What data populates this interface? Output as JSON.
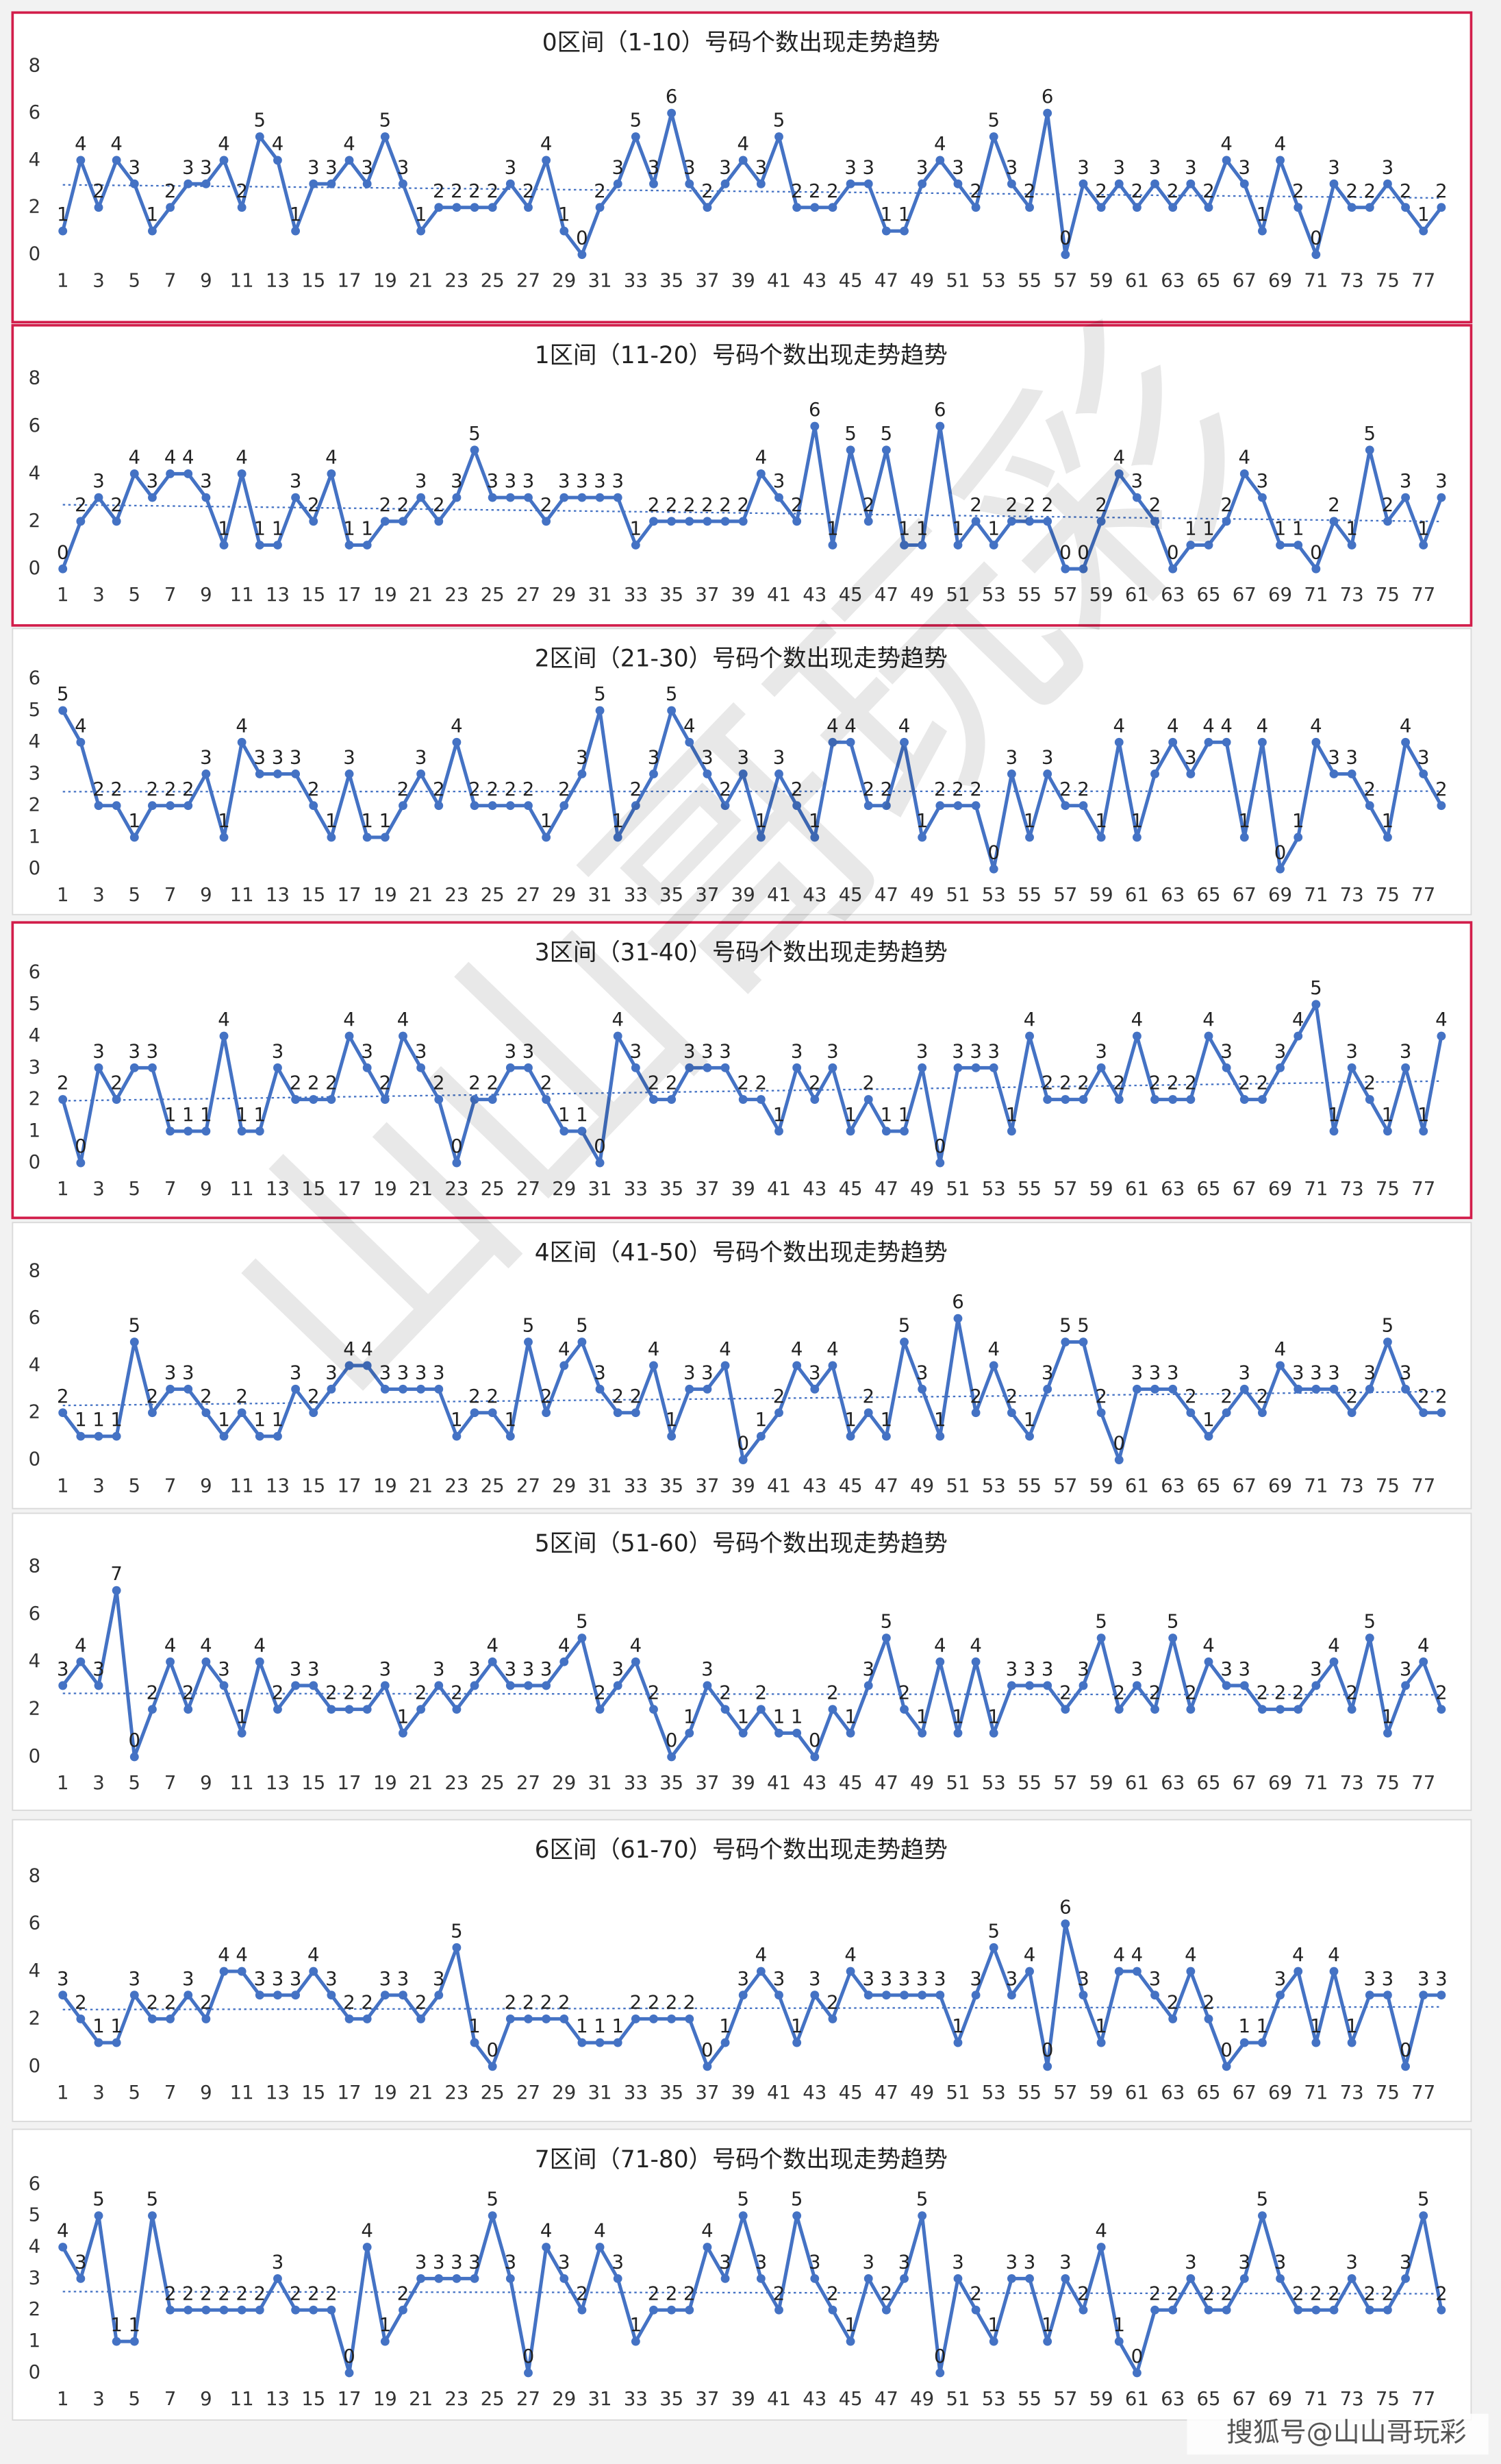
{
  "chart_data": [
    {
      "type": "line",
      "title": "0区间（1-10）号码个数出现走势趋势",
      "color": "#4472c4",
      "highlighted": true,
      "ylim": [
        0,
        8
      ],
      "yticks": [
        0,
        2,
        4,
        6,
        8
      ],
      "categories": [
        1,
        null,
        3,
        null,
        5,
        null,
        7,
        null,
        9,
        null,
        11,
        null,
        13,
        null,
        15,
        null,
        17,
        null,
        19,
        null,
        21,
        null,
        23,
        null,
        25,
        null,
        27,
        null,
        29,
        null,
        31,
        null,
        33,
        null,
        35,
        null,
        37,
        null,
        39,
        null,
        41,
        null,
        43,
        null,
        45,
        null,
        47,
        null,
        49,
        null,
        51,
        null,
        53,
        null,
        55,
        null,
        57,
        null,
        59,
        null,
        61,
        null,
        63,
        null,
        65,
        null,
        67,
        null,
        69,
        null,
        71,
        null,
        73,
        null,
        75,
        null,
        77,
        null
      ],
      "values": [
        1,
        4,
        2,
        4,
        3,
        1,
        2,
        3,
        3,
        4,
        2,
        5,
        4,
        1,
        3,
        3,
        4,
        3,
        5,
        3,
        1,
        2,
        2,
        2,
        2,
        3,
        2,
        4,
        1,
        0,
        2,
        3,
        5,
        3,
        6,
        3,
        2,
        3,
        4,
        3,
        5,
        2,
        2,
        2,
        3,
        3,
        1,
        1,
        3,
        4,
        3,
        2,
        5,
        3,
        2,
        6,
        0,
        3,
        2,
        3,
        2,
        3,
        2,
        3,
        2,
        4,
        3,
        1,
        4,
        2,
        0,
        3,
        2,
        2,
        3,
        2,
        1,
        2
      ]
    },
    {
      "type": "line",
      "title": "1区间（11-20）号码个数出现走势趋势",
      "color": "#4472c4",
      "highlighted": true,
      "ylim": [
        0,
        8
      ],
      "yticks": [
        0,
        2,
        4,
        6,
        8
      ],
      "categories": [
        1,
        null,
        3,
        null,
        5,
        null,
        7,
        null,
        9,
        null,
        11,
        null,
        13,
        null,
        15,
        null,
        17,
        null,
        19,
        null,
        21,
        null,
        23,
        null,
        25,
        null,
        27,
        null,
        29,
        null,
        31,
        null,
        33,
        null,
        35,
        null,
        37,
        null,
        39,
        null,
        41,
        null,
        43,
        null,
        45,
        null,
        47,
        null,
        49,
        null,
        51,
        null,
        53,
        null,
        55,
        null,
        57,
        null,
        59,
        null,
        61,
        null,
        63,
        null,
        65,
        null,
        67,
        null,
        69,
        null,
        71,
        null,
        73,
        null,
        75,
        null,
        77,
        null
      ],
      "values": [
        0,
        2,
        3,
        2,
        4,
        3,
        4,
        4,
        3,
        1,
        4,
        1,
        1,
        3,
        2,
        4,
        1,
        1,
        2,
        2,
        3,
        2,
        3,
        5,
        3,
        3,
        3,
        2,
        3,
        3,
        3,
        3,
        1,
        2,
        2,
        2,
        2,
        2,
        2,
        4,
        3,
        2,
        6,
        1,
        5,
        2,
        5,
        1,
        1,
        6,
        1,
        2,
        1,
        2,
        2,
        2,
        0,
        0,
        2,
        4,
        3,
        2,
        0,
        1,
        1,
        2,
        4,
        3,
        1,
        1,
        0,
        2,
        1,
        5,
        2,
        3,
        1,
        3
      ]
    },
    {
      "type": "line",
      "title": "2区间（21-30）号码个数出现走势趋势",
      "color": "#4472c4",
      "highlighted": false,
      "ylim": [
        0,
        6
      ],
      "yticks": [
        0,
        1,
        2,
        3,
        4,
        5,
        6
      ],
      "categories": [
        1,
        null,
        3,
        null,
        5,
        null,
        7,
        null,
        9,
        null,
        11,
        null,
        13,
        null,
        15,
        null,
        17,
        null,
        19,
        null,
        21,
        null,
        23,
        null,
        25,
        null,
        27,
        null,
        29,
        null,
        31,
        null,
        33,
        null,
        35,
        null,
        37,
        null,
        39,
        null,
        41,
        null,
        43,
        null,
        45,
        null,
        47,
        null,
        49,
        null,
        51,
        null,
        53,
        null,
        55,
        null,
        57,
        null,
        59,
        null,
        61,
        null,
        63,
        null,
        65,
        null,
        67,
        null,
        69,
        null,
        71,
        null,
        73,
        null,
        75,
        null,
        77,
        null
      ],
      "values": [
        5,
        4,
        2,
        2,
        1,
        2,
        2,
        2,
        3,
        1,
        4,
        3,
        3,
        3,
        2,
        1,
        3,
        1,
        1,
        2,
        3,
        2,
        4,
        2,
        2,
        2,
        2,
        1,
        2,
        3,
        5,
        1,
        2,
        3,
        5,
        4,
        3,
        2,
        3,
        1,
        3,
        2,
        1,
        4,
        4,
        2,
        2,
        4,
        1,
        2,
        2,
        2,
        0,
        3,
        1,
        3,
        2,
        2,
        1,
        4,
        1,
        3,
        4,
        3,
        4,
        4,
        1,
        4,
        0,
        1,
        4,
        3,
        3,
        2,
        1,
        4,
        3,
        2
      ]
    },
    {
      "type": "line",
      "title": "3区间（31-40）号码个数出现走势趋势",
      "color": "#4472c4",
      "highlighted": true,
      "ylim": [
        0,
        6
      ],
      "yticks": [
        0,
        1,
        2,
        3,
        4,
        5,
        6
      ],
      "categories": [
        1,
        null,
        3,
        null,
        5,
        null,
        7,
        null,
        9,
        null,
        11,
        null,
        13,
        null,
        15,
        null,
        17,
        null,
        19,
        null,
        21,
        null,
        23,
        null,
        25,
        null,
        27,
        null,
        29,
        null,
        31,
        null,
        33,
        null,
        35,
        null,
        37,
        null,
        39,
        null,
        41,
        null,
        43,
        null,
        45,
        null,
        47,
        null,
        49,
        null,
        51,
        null,
        53,
        null,
        55,
        null,
        57,
        null,
        59,
        null,
        61,
        null,
        63,
        null,
        65,
        null,
        67,
        null,
        69,
        null,
        71,
        null,
        73,
        null,
        75,
        null,
        77,
        null
      ],
      "values": [
        2,
        0,
        3,
        2,
        3,
        3,
        1,
        1,
        1,
        4,
        1,
        1,
        3,
        2,
        2,
        2,
        4,
        3,
        2,
        4,
        3,
        2,
        0,
        2,
        2,
        3,
        3,
        2,
        1,
        1,
        0,
        4,
        3,
        2,
        2,
        3,
        3,
        3,
        2,
        2,
        1,
        3,
        2,
        3,
        1,
        2,
        1,
        1,
        3,
        0,
        3,
        3,
        3,
        1,
        4,
        2,
        2,
        2,
        3,
        2,
        4,
        2,
        2,
        2,
        4,
        3,
        2,
        2,
        3,
        4,
        5,
        1,
        3,
        2,
        1,
        3,
        1,
        4
      ]
    },
    {
      "type": "line",
      "title": "4区间（41-50）号码个数出现走势趋势",
      "color": "#4472c4",
      "highlighted": false,
      "ylim": [
        0,
        8
      ],
      "yticks": [
        0,
        2,
        4,
        6,
        8
      ],
      "categories": [
        1,
        null,
        3,
        null,
        5,
        null,
        7,
        null,
        9,
        null,
        11,
        null,
        13,
        null,
        15,
        null,
        17,
        null,
        19,
        null,
        21,
        null,
        23,
        null,
        25,
        null,
        27,
        null,
        29,
        null,
        31,
        null,
        33,
        null,
        35,
        null,
        37,
        null,
        39,
        null,
        41,
        null,
        43,
        null,
        45,
        null,
        47,
        null,
        49,
        null,
        51,
        null,
        53,
        null,
        55,
        null,
        57,
        null,
        59,
        null,
        61,
        null,
        63,
        null,
        65,
        null,
        67,
        null,
        69,
        null,
        71,
        null,
        73,
        null,
        75,
        null,
        77,
        null
      ],
      "values": [
        2,
        1,
        1,
        1,
        5,
        2,
        3,
        3,
        2,
        1,
        2,
        1,
        1,
        3,
        2,
        3,
        4,
        4,
        3,
        3,
        3,
        3,
        1,
        2,
        2,
        1,
        5,
        2,
        4,
        5,
        3,
        2,
        2,
        4,
        1,
        3,
        3,
        4,
        0,
        1,
        2,
        4,
        3,
        4,
        1,
        2,
        1,
        5,
        3,
        1,
        6,
        2,
        4,
        2,
        1,
        3,
        5,
        5,
        2,
        0,
        3,
        3,
        3,
        2,
        1,
        2,
        3,
        2,
        4,
        3,
        3,
        3,
        2,
        3,
        5,
        3,
        2,
        2
      ]
    },
    {
      "type": "line",
      "title": "5区间（51-60）号码个数出现走势趋势",
      "color": "#4472c4",
      "highlighted": false,
      "ylim": [
        0,
        8
      ],
      "yticks": [
        0,
        2,
        4,
        6,
        8
      ],
      "categories": [
        1,
        null,
        3,
        null,
        5,
        null,
        7,
        null,
        9,
        null,
        11,
        null,
        13,
        null,
        15,
        null,
        17,
        null,
        19,
        null,
        21,
        null,
        23,
        null,
        25,
        null,
        27,
        null,
        29,
        null,
        31,
        null,
        33,
        null,
        35,
        null,
        37,
        null,
        39,
        null,
        41,
        null,
        43,
        null,
        45,
        null,
        47,
        null,
        49,
        null,
        51,
        null,
        53,
        null,
        55,
        null,
        57,
        null,
        59,
        null,
        61,
        null,
        63,
        null,
        65,
        null,
        67,
        null,
        69,
        null,
        71,
        null,
        73,
        null,
        75,
        null,
        77,
        null
      ],
      "values": [
        3,
        4,
        3,
        7,
        0,
        2,
        4,
        2,
        4,
        3,
        1,
        4,
        2,
        3,
        3,
        2,
        2,
        2,
        3,
        1,
        2,
        3,
        2,
        3,
        4,
        3,
        3,
        3,
        4,
        5,
        2,
        3,
        4,
        2,
        0,
        1,
        3,
        2,
        1,
        2,
        1,
        1,
        0,
        2,
        1,
        3,
        5,
        2,
        1,
        4,
        1,
        4,
        1,
        3,
        3,
        3,
        2,
        3,
        5,
        2,
        3,
        2,
        5,
        2,
        4,
        3,
        3,
        2,
        2,
        2,
        3,
        4,
        2,
        5,
        1,
        3,
        4,
        2
      ]
    },
    {
      "type": "line",
      "title": "6区间（61-70）号码个数出现走势趋势",
      "color": "#4472c4",
      "highlighted": false,
      "ylim": [
        0,
        8
      ],
      "yticks": [
        0,
        2,
        4,
        6,
        8
      ],
      "categories": [
        1,
        null,
        3,
        null,
        5,
        null,
        7,
        null,
        9,
        null,
        11,
        null,
        13,
        null,
        15,
        null,
        17,
        null,
        19,
        null,
        21,
        null,
        23,
        null,
        25,
        null,
        27,
        null,
        29,
        null,
        31,
        null,
        33,
        null,
        35,
        null,
        37,
        null,
        39,
        null,
        41,
        null,
        43,
        null,
        45,
        null,
        47,
        null,
        49,
        null,
        51,
        null,
        53,
        null,
        55,
        null,
        57,
        null,
        59,
        null,
        61,
        null,
        63,
        null,
        65,
        null,
        67,
        null,
        69,
        null,
        71,
        null,
        73,
        null,
        75,
        null,
        77,
        null
      ],
      "values": [
        3,
        2,
        1,
        1,
        3,
        2,
        2,
        3,
        2,
        4,
        4,
        3,
        3,
        3,
        4,
        3,
        2,
        2,
        3,
        3,
        2,
        3,
        5,
        1,
        0,
        2,
        2,
        2,
        2,
        1,
        1,
        1,
        2,
        2,
        2,
        2,
        0,
        1,
        3,
        4,
        3,
        1,
        3,
        2,
        4,
        3,
        3,
        3,
        3,
        3,
        1,
        3,
        5,
        3,
        4,
        0,
        6,
        3,
        1,
        4,
        4,
        3,
        2,
        4,
        2,
        0,
        1,
        1,
        3,
        4,
        1,
        4,
        1,
        3,
        3,
        0,
        3,
        3
      ]
    },
    {
      "type": "line",
      "title": "7区间（71-80）号码个数出现走势趋势",
      "color": "#4472c4",
      "highlighted": false,
      "ylim": [
        0,
        6
      ],
      "yticks": [
        0,
        1,
        2,
        3,
        4,
        5,
        6
      ],
      "categories": [
        1,
        null,
        3,
        null,
        5,
        null,
        7,
        null,
        9,
        null,
        11,
        null,
        13,
        null,
        15,
        null,
        17,
        null,
        19,
        null,
        21,
        null,
        23,
        null,
        25,
        null,
        27,
        null,
        29,
        null,
        31,
        null,
        33,
        null,
        35,
        null,
        37,
        null,
        39,
        null,
        41,
        null,
        43,
        null,
        45,
        null,
        47,
        null,
        49,
        null,
        51,
        null,
        53,
        null,
        55,
        null,
        57,
        null,
        59,
        null,
        61,
        null,
        63,
        null,
        65,
        null,
        67,
        null,
        69,
        null,
        71,
        null,
        73,
        null,
        75,
        null,
        77,
        null
      ],
      "values": [
        4,
        3,
        5,
        1,
        1,
        5,
        2,
        2,
        2,
        2,
        2,
        2,
        3,
        2,
        2,
        2,
        0,
        4,
        1,
        2,
        3,
        3,
        3,
        3,
        5,
        3,
        0,
        4,
        3,
        2,
        4,
        3,
        1,
        2,
        2,
        2,
        4,
        3,
        5,
        3,
        2,
        5,
        3,
        2,
        1,
        3,
        2,
        3,
        5,
        0,
        3,
        2,
        1,
        3,
        3,
        1,
        3,
        2,
        4,
        1,
        0,
        2,
        2,
        3,
        2,
        2,
        3,
        5,
        3,
        2,
        2,
        2,
        3,
        2,
        2,
        3,
        5,
        2
      ]
    }
  ],
  "watermark": "山山哥玩彩",
  "footer": "搜狐号@山山哥玩彩"
}
